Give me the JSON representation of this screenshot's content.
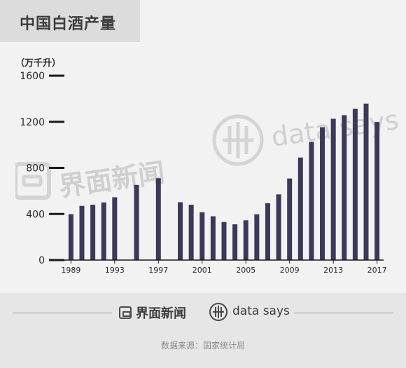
{
  "header": {
    "title": "中国白酒产量"
  },
  "chart_data": {
    "type": "bar",
    "unit_label": "（万千升）",
    "x": [
      1989,
      1990,
      1991,
      1992,
      1993,
      1995,
      1997,
      1999,
      2000,
      2001,
      2002,
      2003,
      2004,
      2005,
      2006,
      2007,
      2008,
      2009,
      2010,
      2011,
      2012,
      2013,
      2014,
      2015,
      2016,
      2017
    ],
    "values": [
      398,
      470,
      480,
      500,
      545,
      652,
      710,
      502,
      480,
      415,
      380,
      330,
      310,
      345,
      397,
      493,
      570,
      708,
      890,
      1026,
      1153,
      1226,
      1257,
      1313,
      1358,
      1198
    ],
    "x_ticks": [
      "1989",
      "1993",
      "1997",
      "2001",
      "2005",
      "2009",
      "2013",
      "2017"
    ],
    "y_ticks": [
      "0",
      "400",
      "800",
      "1200",
      "1600"
    ],
    "ylim": [
      0,
      1600
    ],
    "bar_color": "#3b3858",
    "axis_color": "#1a1a1a"
  },
  "watermark": {
    "jiemian": "界面新闻",
    "datasays": "data says"
  },
  "footer": {
    "jiemian_logo": "界面新闻",
    "datasays_logo": "data says",
    "source": "数据来源：国家统计局"
  }
}
